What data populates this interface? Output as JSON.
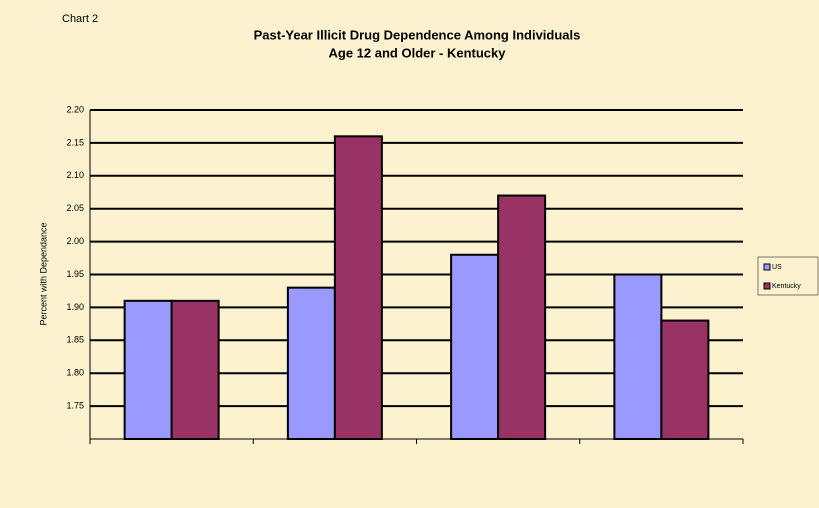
{
  "label": "Chart 2",
  "chart_data": {
    "type": "bar",
    "title": [
      "Past-Year Illicit Drug Dependence Among Individuals",
      "Age 12 and Older - Kentucky"
    ],
    "y_label": "Percent with Dependance",
    "categories": [
      null,
      null,
      null,
      null
    ],
    "series": [
      {
        "name": "US",
        "color": "#9999ff",
        "values": [
          1.91,
          1.93,
          1.98,
          1.95
        ]
      },
      {
        "name": "Kentucky",
        "color": "#993366",
        "values": [
          1.91,
          2.16,
          2.07,
          1.88
        ]
      }
    ],
    "ylim": [
      1.7,
      2.2
    ],
    "yticks": [
      1.75,
      {
        "value": 1.8,
        "label": "1.80"
      },
      1.85,
      {
        "value": 1.9,
        "label": "1.90"
      },
      1.95,
      {
        "value": 2.0,
        "label": "2.00"
      },
      2.05,
      {
        "value": 2.1,
        "label": "2.10"
      },
      2.15,
      {
        "value": 2.2,
        "label": "2.20"
      }
    ],
    "grid": true,
    "legend": "right"
  }
}
